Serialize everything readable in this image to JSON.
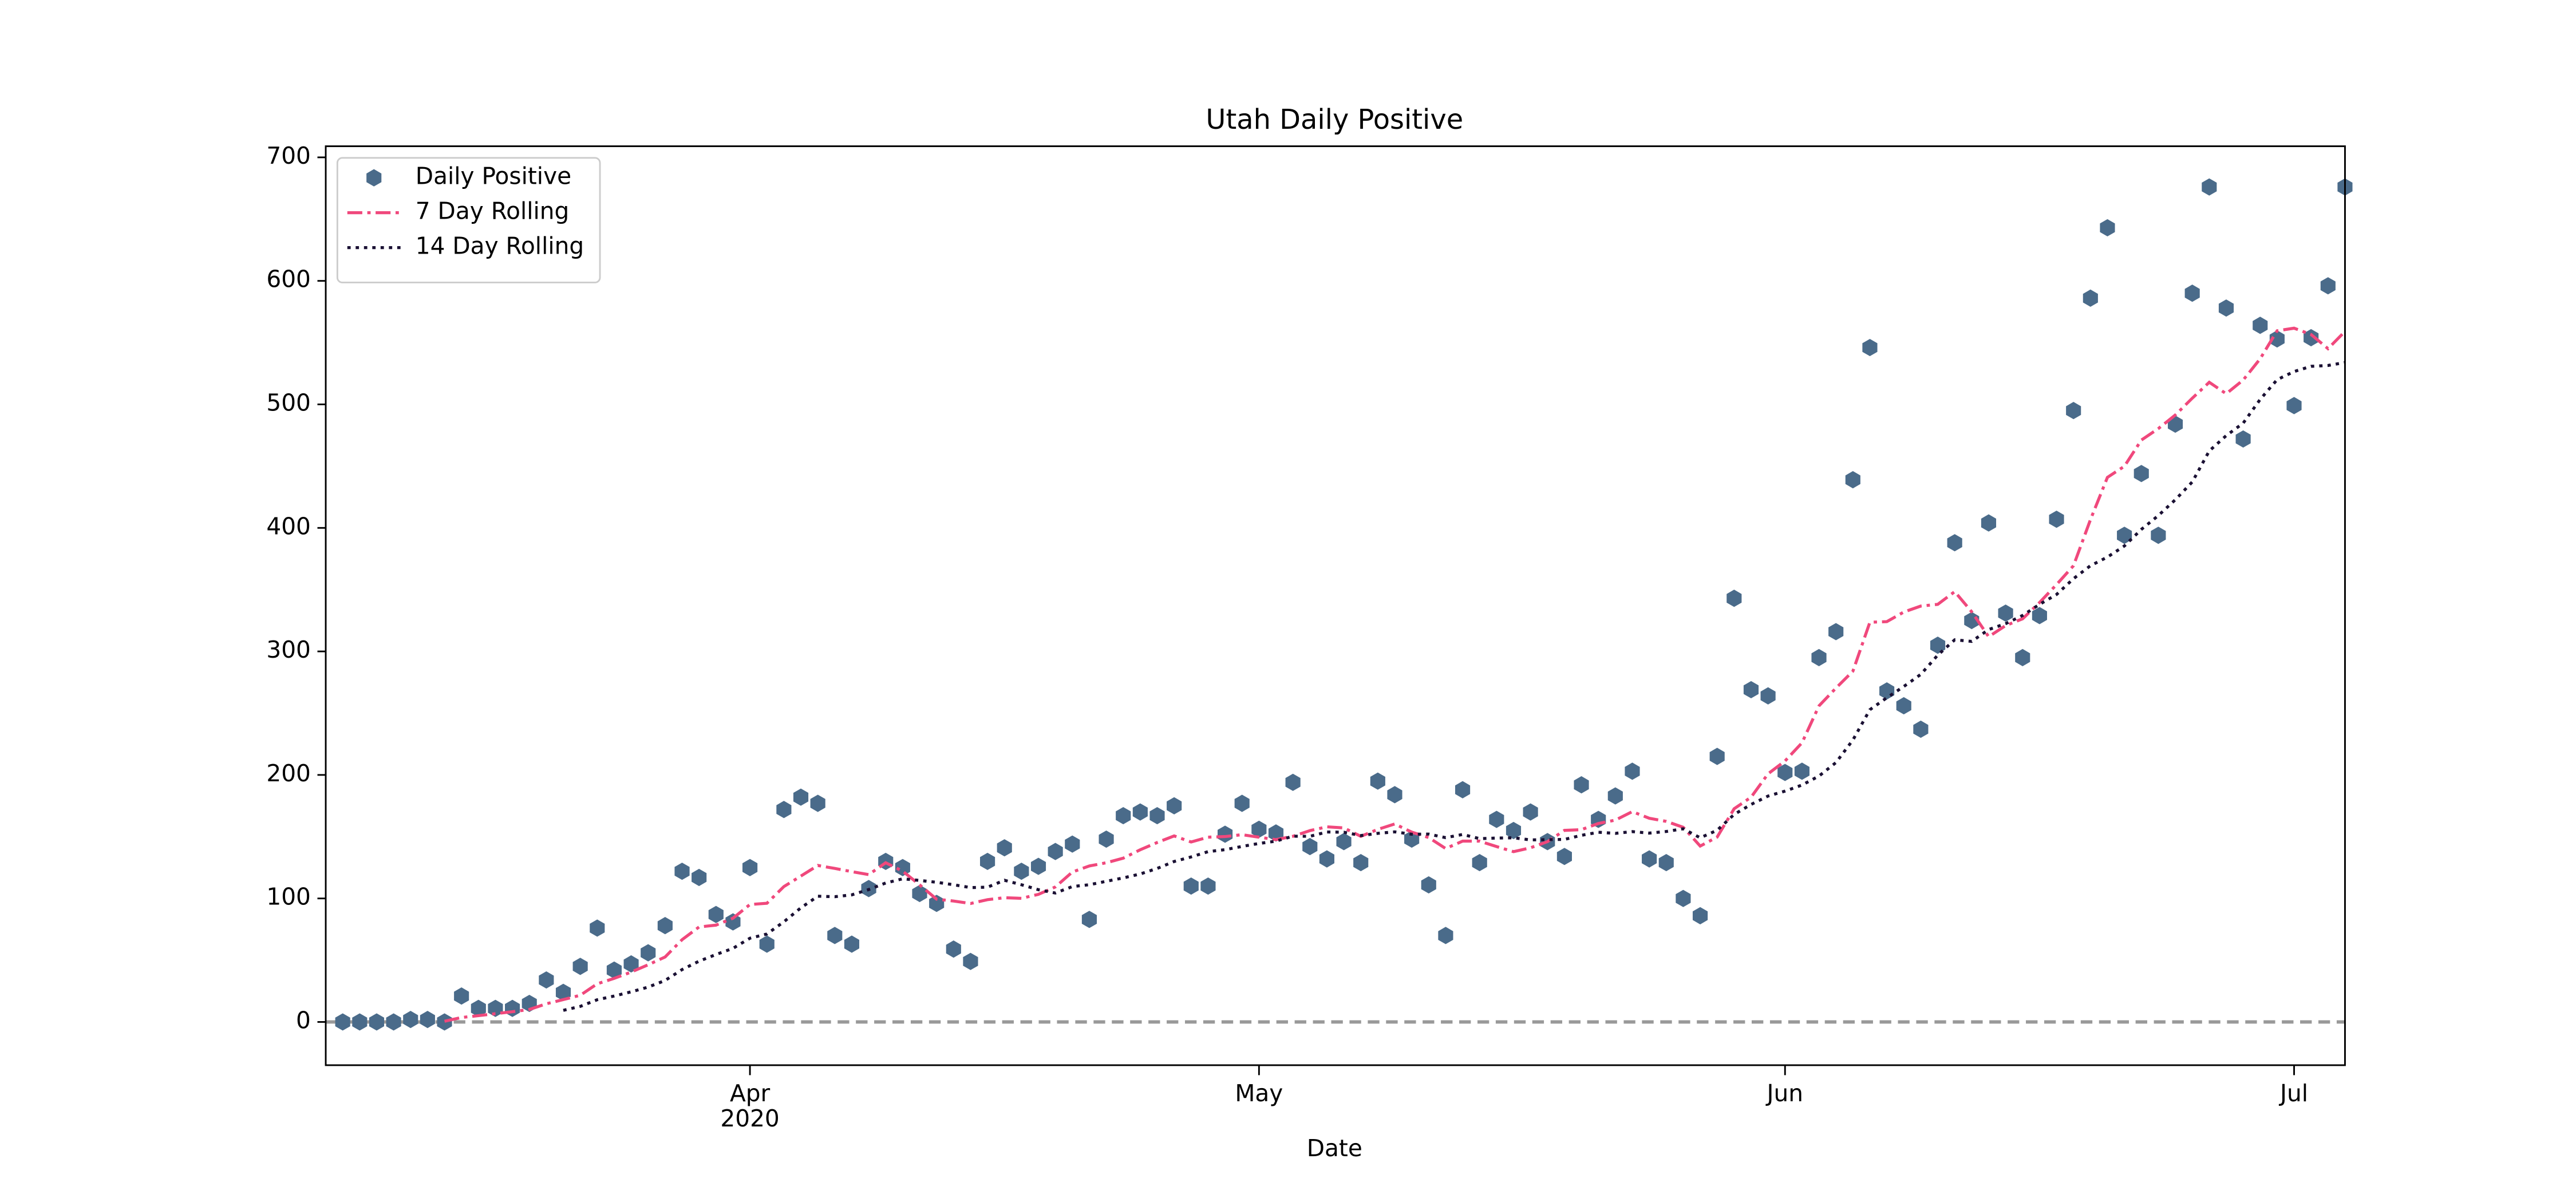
{
  "chart_data": {
    "type": "scatter_line",
    "title": "Utah Daily Positive",
    "x_label": "Date",
    "x": [
      "2020-03-08",
      "2020-03-09",
      "2020-03-10",
      "2020-03-11",
      "2020-03-12",
      "2020-03-13",
      "2020-03-14",
      "2020-03-15",
      "2020-03-16",
      "2020-03-17",
      "2020-03-18",
      "2020-03-19",
      "2020-03-20",
      "2020-03-21",
      "2020-03-22",
      "2020-03-23",
      "2020-03-24",
      "2020-03-25",
      "2020-03-26",
      "2020-03-27",
      "2020-03-28",
      "2020-03-29",
      "2020-03-30",
      "2020-03-31",
      "2020-04-01",
      "2020-04-02",
      "2020-04-03",
      "2020-04-04",
      "2020-04-05",
      "2020-04-06",
      "2020-04-07",
      "2020-04-08",
      "2020-04-09",
      "2020-04-10",
      "2020-04-11",
      "2020-04-12",
      "2020-04-13",
      "2020-04-14",
      "2020-04-15",
      "2020-04-16",
      "2020-04-17",
      "2020-04-18",
      "2020-04-19",
      "2020-04-20",
      "2020-04-21",
      "2020-04-22",
      "2020-04-23",
      "2020-04-24",
      "2020-04-25",
      "2020-04-26",
      "2020-04-27",
      "2020-04-28",
      "2020-04-29",
      "2020-04-30",
      "2020-05-01",
      "2020-05-02",
      "2020-05-03",
      "2020-05-04",
      "2020-05-05",
      "2020-05-06",
      "2020-05-07",
      "2020-05-08",
      "2020-05-09",
      "2020-05-10",
      "2020-05-11",
      "2020-05-12",
      "2020-05-13",
      "2020-05-14",
      "2020-05-15",
      "2020-05-16",
      "2020-05-17",
      "2020-05-18",
      "2020-05-19",
      "2020-05-20",
      "2020-05-21",
      "2020-05-22",
      "2020-05-23",
      "2020-05-24",
      "2020-05-25",
      "2020-05-26",
      "2020-05-27",
      "2020-05-28",
      "2020-05-29",
      "2020-05-30",
      "2020-05-31",
      "2020-06-01",
      "2020-06-02",
      "2020-06-03",
      "2020-06-04",
      "2020-06-05",
      "2020-06-06",
      "2020-06-07",
      "2020-06-08",
      "2020-06-09",
      "2020-06-10",
      "2020-06-11",
      "2020-06-12",
      "2020-06-13",
      "2020-06-14",
      "2020-06-15",
      "2020-06-16",
      "2020-06-17",
      "2020-06-18",
      "2020-06-19",
      "2020-06-20",
      "2020-06-21",
      "2020-06-22",
      "2020-06-23",
      "2020-06-24",
      "2020-06-25",
      "2020-06-26",
      "2020-06-27",
      "2020-06-28",
      "2020-06-29",
      "2020-06-30",
      "2020-07-01",
      "2020-07-02",
      "2020-07-03",
      "2020-07-04"
    ],
    "series": [
      {
        "name": "Daily Positive",
        "color": "#4a6b8a",
        "style": "marker",
        "values": [
          0,
          0,
          0,
          0,
          2,
          2,
          0,
          21,
          11,
          11,
          11,
          15,
          34,
          24,
          45,
          76,
          42,
          47,
          56,
          78,
          122,
          117,
          87,
          81,
          125,
          63,
          172,
          182,
          177,
          70,
          63,
          108,
          130,
          125,
          104,
          96,
          59,
          49,
          130,
          141,
          122,
          126,
          138,
          144,
          83,
          148,
          167,
          170,
          167,
          175,
          110,
          110,
          152,
          177,
          156,
          153,
          194,
          142,
          132,
          146,
          129,
          195,
          184,
          148,
          111,
          70,
          188,
          129,
          164,
          155,
          170,
          146,
          134,
          192,
          164,
          183,
          203,
          132,
          129,
          100,
          86,
          215,
          343,
          269,
          264,
          202,
          203,
          295,
          316,
          439,
          546,
          268,
          256,
          237,
          305,
          388,
          325,
          404,
          331,
          295,
          329,
          407,
          495,
          586,
          643,
          394,
          444,
          394,
          484,
          590,
          676,
          578,
          472,
          564,
          553,
          499,
          554,
          596,
          676
        ]
      },
      {
        "name": "7 Day Rolling",
        "color": "#f0487c",
        "style": "dashdot",
        "values": [
          null,
          null,
          null,
          null,
          null,
          null,
          0.6,
          3.6,
          5.1,
          6.7,
          8.3,
          10.1,
          14.7,
          18.1,
          21.6,
          30.9,
          35.3,
          40.4,
          46.3,
          52.6,
          66.6,
          76.9,
          78.4,
          84,
          95.1,
          96.1,
          109.6,
          118.1,
          126.7,
          124.3,
          121.7,
          119.3,
          128.9,
          122.1,
          111,
          99.4,
          97.9,
          95.9,
          99,
          100.6,
          100.1,
          103.3,
          109.3,
          121.4,
          126.3,
          128.9,
          132.6,
          139.4,
          145.3,
          150.6,
          145.7,
          149.6,
          150.1,
          151.6,
          149.6,
          147.6,
          150.3,
          154.9,
          158,
          157.1,
          150.3,
          155.9,
          160.3,
          153.7,
          149.3,
          140.4,
          146.4,
          146.4,
          142,
          137.9,
          141,
          146,
          155.1,
          155.7,
          160.7,
          163.4,
          170.3,
          164.9,
          162.4,
          157.6,
          142.4,
          149.7,
          172.6,
          182,
          200.9,
          211.3,
          226,
          255.9,
          270.3,
          284,
          323.6,
          324.1,
          331.9,
          336.7,
          338.1,
          348.4,
          332.1,
          311.9,
          320.9,
          326.4,
          339.6,
          354.1,
          369.4,
          406.7,
          440.9,
          449.9,
          471.1,
          480.4,
          491.4,
          505,
          517.9,
          508.6,
          519.7,
          536.9,
          559.6,
          561.7,
          556.6,
          545.1,
          559.1
        ]
      },
      {
        "name": "14 Day Rolling",
        "color": "#1a1033",
        "style": "dotted",
        "values": [
          null,
          null,
          null,
          null,
          null,
          null,
          null,
          null,
          null,
          null,
          null,
          null,
          null,
          9.4,
          12.6,
          18,
          21,
          24.4,
          28.2,
          33.6,
          42.4,
          49.2,
          54.6,
          59.6,
          67.8,
          71.2,
          81.1,
          92.4,
          101.8,
          101.4,
          102.9,
          107.2,
          112.5,
          115.9,
          114.6,
          113.1,
          111.1,
          108.8,
          109.1,
          114.7,
          111.1,
          107.1,
          104.4,
          109.6,
          111.1,
          113.9,
          116.6,
          119.8,
          124.3,
          129.9,
          133.6,
          137.9,
          139.5,
          142.1,
          144.5,
          146.4,
          150.4,
          150.3,
          153.8,
          153.6,
          150.9,
          152.7,
          153.9,
          152,
          152.1,
          149.2,
          151.8,
          148.4,
          148.9,
          149.1,
          147.4,
          147.6,
          147.8,
          151.1,
          153.6,
          152.7,
          154.1,
          152.9,
          154.2,
          156.4,
          149.1,
          155.2,
          168,
          176.1,
          182.9,
          186.9,
          191.8,
          199.1,
          210,
          228.3,
          252.8,
          262.5,
          271.6,
          281.4,
          297,
          309.4,
          308.1,
          317.7,
          322.5,
          329.1,
          338.1,
          346.1,
          358.9,
          369.4,
          376.4,
          385.4,
          398.8,
          410,
          422.8,
          437.2,
          462.3,
          474.7,
          484.8,
          504,
          520,
          526.6,
          530.8,
          531.5,
          533.9
        ]
      }
    ],
    "hline": 0,
    "xlim": [
      "2020-03-07",
      "2020-07-04"
    ],
    "xticks": [
      {
        "value": "2020-04-01",
        "label": "Apr\n2020"
      },
      {
        "value": "2020-05-01",
        "label": "May"
      },
      {
        "value": "2020-06-01",
        "label": "Jun"
      },
      {
        "value": "2020-07-01",
        "label": "Jul"
      }
    ],
    "ylim": [
      -35,
      709
    ],
    "yticks": [
      0,
      100,
      200,
      300,
      400,
      500,
      600,
      700
    ],
    "legend": "upper left",
    "grid": false
  }
}
